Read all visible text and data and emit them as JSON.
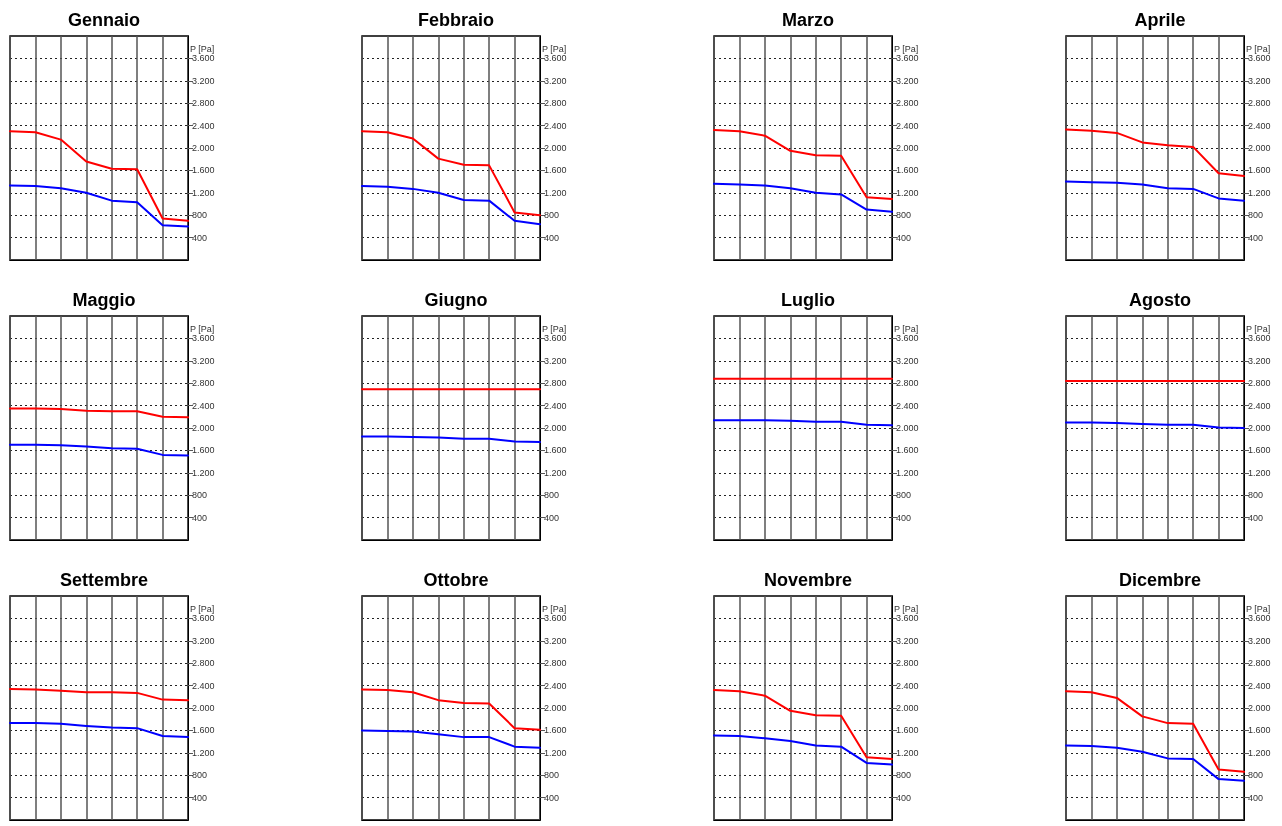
{
  "chart_data": [
    {
      "type": "line",
      "title": "Gennaio",
      "ylabel": "P [Pa]",
      "categories": [
        null,
        null,
        null,
        null,
        null,
        null,
        null,
        null
      ],
      "series": [
        {
          "color": "#ff0000",
          "values": [
            2300,
            2280,
            2150,
            1760,
            1630,
            1620,
            740,
            700
          ]
        },
        {
          "color": "#0000ff",
          "values": [
            1330,
            1320,
            1280,
            1200,
            1060,
            1030,
            620,
            600
          ]
        }
      ],
      "ylim": [
        0,
        4000
      ],
      "yticks": [
        {
          "value": 400,
          "label": "400"
        },
        {
          "value": 800,
          "label": "800"
        },
        {
          "value": 1200,
          "label": "1.200"
        },
        {
          "value": 1600,
          "label": "1.600"
        },
        {
          "value": 2000,
          "label": "2.000"
        },
        {
          "value": 2400,
          "label": "2.400"
        },
        {
          "value": 2800,
          "label": "2.800"
        },
        {
          "value": 3200,
          "label": "3.200"
        },
        {
          "value": 3600,
          "label": "3.600"
        }
      ],
      "grid": true,
      "tick_labels": "y",
      "marker": "none",
      "line_style": "solid"
    },
    {
      "type": "line",
      "title": "Febbraio",
      "ylabel": "P [Pa]",
      "categories": [
        null,
        null,
        null,
        null,
        null,
        null,
        null,
        null
      ],
      "series": [
        {
          "color": "#ff0000",
          "values": [
            2300,
            2280,
            2170,
            1810,
            1700,
            1690,
            850,
            800
          ]
        },
        {
          "color": "#0000ff",
          "values": [
            1320,
            1310,
            1270,
            1200,
            1070,
            1060,
            700,
            640
          ]
        }
      ],
      "ylim": [
        0,
        4000
      ],
      "yticks": [
        {
          "value": 400,
          "label": "400"
        },
        {
          "value": 800,
          "label": "800"
        },
        {
          "value": 1200,
          "label": "1.200"
        },
        {
          "value": 1600,
          "label": "1.600"
        },
        {
          "value": 2000,
          "label": "2.000"
        },
        {
          "value": 2400,
          "label": "2.400"
        },
        {
          "value": 2800,
          "label": "2.800"
        },
        {
          "value": 3200,
          "label": "3.200"
        },
        {
          "value": 3600,
          "label": "3.600"
        }
      ],
      "grid": true,
      "tick_labels": "y",
      "marker": "none",
      "line_style": "solid"
    },
    {
      "type": "line",
      "title": "Marzo",
      "ylabel": "P [Pa]",
      "categories": [
        null,
        null,
        null,
        null,
        null,
        null,
        null,
        null
      ],
      "series": [
        {
          "color": "#ff0000",
          "values": [
            2320,
            2300,
            2220,
            1950,
            1870,
            1860,
            1120,
            1090
          ]
        },
        {
          "color": "#0000ff",
          "values": [
            1360,
            1350,
            1330,
            1280,
            1200,
            1170,
            900,
            860
          ]
        }
      ],
      "ylim": [
        0,
        4000
      ],
      "yticks": [
        {
          "value": 400,
          "label": "400"
        },
        {
          "value": 800,
          "label": "800"
        },
        {
          "value": 1200,
          "label": "1.200"
        },
        {
          "value": 1600,
          "label": "1.600"
        },
        {
          "value": 2000,
          "label": "2.000"
        },
        {
          "value": 2400,
          "label": "2.400"
        },
        {
          "value": 2800,
          "label": "2.800"
        },
        {
          "value": 3200,
          "label": "3.200"
        },
        {
          "value": 3600,
          "label": "3.600"
        }
      ],
      "grid": true,
      "tick_labels": "y",
      "marker": "none",
      "line_style": "solid"
    },
    {
      "type": "line",
      "title": "Aprile",
      "ylabel": "P [Pa]",
      "categories": [
        null,
        null,
        null,
        null,
        null,
        null,
        null,
        null
      ],
      "series": [
        {
          "color": "#ff0000",
          "values": [
            2330,
            2310,
            2270,
            2100,
            2050,
            2020,
            1550,
            1500
          ]
        },
        {
          "color": "#0000ff",
          "values": [
            1400,
            1390,
            1380,
            1350,
            1280,
            1270,
            1100,
            1060
          ]
        }
      ],
      "ylim": [
        0,
        4000
      ],
      "yticks": [
        {
          "value": 400,
          "label": "400"
        },
        {
          "value": 800,
          "label": "800"
        },
        {
          "value": 1200,
          "label": "1.200"
        },
        {
          "value": 1600,
          "label": "1.600"
        },
        {
          "value": 2000,
          "label": "2.000"
        },
        {
          "value": 2400,
          "label": "2.400"
        },
        {
          "value": 2800,
          "label": "2.800"
        },
        {
          "value": 3200,
          "label": "3.200"
        },
        {
          "value": 3600,
          "label": "3.600"
        }
      ],
      "grid": true,
      "tick_labels": "y",
      "marker": "none",
      "line_style": "solid"
    },
    {
      "type": "line",
      "title": "Maggio",
      "ylabel": "P [Pa]",
      "categories": [
        null,
        null,
        null,
        null,
        null,
        null,
        null,
        null
      ],
      "series": [
        {
          "color": "#ff0000",
          "values": [
            2350,
            2350,
            2340,
            2310,
            2300,
            2300,
            2200,
            2190
          ]
        },
        {
          "color": "#0000ff",
          "values": [
            1700,
            1700,
            1690,
            1670,
            1640,
            1630,
            1520,
            1510
          ]
        }
      ],
      "ylim": [
        0,
        4000
      ],
      "yticks": [
        {
          "value": 400,
          "label": "400"
        },
        {
          "value": 800,
          "label": "800"
        },
        {
          "value": 1200,
          "label": "1.200"
        },
        {
          "value": 1600,
          "label": "1.600"
        },
        {
          "value": 2000,
          "label": "2.000"
        },
        {
          "value": 2400,
          "label": "2.400"
        },
        {
          "value": 2800,
          "label": "2.800"
        },
        {
          "value": 3200,
          "label": "3.200"
        },
        {
          "value": 3600,
          "label": "3.600"
        }
      ],
      "grid": true,
      "tick_labels": "y",
      "marker": "none",
      "line_style": "solid"
    },
    {
      "type": "line",
      "title": "Giugno",
      "ylabel": "P [Pa]",
      "categories": [
        null,
        null,
        null,
        null,
        null,
        null,
        null,
        null
      ],
      "series": [
        {
          "color": "#ff0000",
          "values": [
            2690,
            2690,
            2690,
            2690,
            2690,
            2690,
            2690,
            2690
          ]
        },
        {
          "color": "#0000ff",
          "values": [
            1850,
            1850,
            1840,
            1830,
            1810,
            1810,
            1760,
            1750
          ]
        }
      ],
      "ylim": [
        0,
        4000
      ],
      "yticks": [
        {
          "value": 400,
          "label": "400"
        },
        {
          "value": 800,
          "label": "800"
        },
        {
          "value": 1200,
          "label": "1.200"
        },
        {
          "value": 1600,
          "label": "1.600"
        },
        {
          "value": 2000,
          "label": "2.000"
        },
        {
          "value": 2400,
          "label": "2.400"
        },
        {
          "value": 2800,
          "label": "2.800"
        },
        {
          "value": 3200,
          "label": "3.200"
        },
        {
          "value": 3600,
          "label": "3.600"
        }
      ],
      "grid": true,
      "tick_labels": "y",
      "marker": "none",
      "line_style": "solid"
    },
    {
      "type": "line",
      "title": "Luglio",
      "ylabel": "P [Pa]",
      "categories": [
        null,
        null,
        null,
        null,
        null,
        null,
        null,
        null
      ],
      "series": [
        {
          "color": "#ff0000",
          "values": [
            2880,
            2880,
            2880,
            2880,
            2880,
            2880,
            2880,
            2880
          ]
        },
        {
          "color": "#0000ff",
          "values": [
            2140,
            2140,
            2140,
            2130,
            2110,
            2110,
            2060,
            2050
          ]
        }
      ],
      "ylim": [
        0,
        4000
      ],
      "yticks": [
        {
          "value": 400,
          "label": "400"
        },
        {
          "value": 800,
          "label": "800"
        },
        {
          "value": 1200,
          "label": "1.200"
        },
        {
          "value": 1600,
          "label": "1.600"
        },
        {
          "value": 2000,
          "label": "2.000"
        },
        {
          "value": 2400,
          "label": "2.400"
        },
        {
          "value": 2800,
          "label": "2.800"
        },
        {
          "value": 3200,
          "label": "3.200"
        },
        {
          "value": 3600,
          "label": "3.600"
        }
      ],
      "grid": true,
      "tick_labels": "y",
      "marker": "none",
      "line_style": "solid"
    },
    {
      "type": "line",
      "title": "Agosto",
      "ylabel": "P [Pa]",
      "categories": [
        null,
        null,
        null,
        null,
        null,
        null,
        null,
        null
      ],
      "series": [
        {
          "color": "#ff0000",
          "values": [
            2840,
            2840,
            2840,
            2840,
            2840,
            2840,
            2840,
            2840
          ]
        },
        {
          "color": "#0000ff",
          "values": [
            2100,
            2100,
            2090,
            2070,
            2060,
            2060,
            2010,
            2000
          ]
        }
      ],
      "ylim": [
        0,
        4000
      ],
      "yticks": [
        {
          "value": 400,
          "label": "400"
        },
        {
          "value": 800,
          "label": "800"
        },
        {
          "value": 1200,
          "label": "1.200"
        },
        {
          "value": 1600,
          "label": "1.600"
        },
        {
          "value": 2000,
          "label": "2.000"
        },
        {
          "value": 2400,
          "label": "2.400"
        },
        {
          "value": 2800,
          "label": "2.800"
        },
        {
          "value": 3200,
          "label": "3.200"
        },
        {
          "value": 3600,
          "label": "3.600"
        }
      ],
      "grid": true,
      "tick_labels": "y",
      "marker": "none",
      "line_style": "solid"
    },
    {
      "type": "line",
      "title": "Settembre",
      "ylabel": "P [Pa]",
      "categories": [
        null,
        null,
        null,
        null,
        null,
        null,
        null,
        null
      ],
      "series": [
        {
          "color": "#ff0000",
          "values": [
            2340,
            2330,
            2310,
            2280,
            2280,
            2270,
            2150,
            2140
          ]
        },
        {
          "color": "#0000ff",
          "values": [
            1730,
            1730,
            1720,
            1680,
            1650,
            1640,
            1500,
            1480
          ]
        }
      ],
      "ylim": [
        0,
        4000
      ],
      "yticks": [
        {
          "value": 400,
          "label": "400"
        },
        {
          "value": 800,
          "label": "800"
        },
        {
          "value": 1200,
          "label": "1.200"
        },
        {
          "value": 1600,
          "label": "1.600"
        },
        {
          "value": 2000,
          "label": "2.000"
        },
        {
          "value": 2400,
          "label": "2.400"
        },
        {
          "value": 2800,
          "label": "2.800"
        },
        {
          "value": 3200,
          "label": "3.200"
        },
        {
          "value": 3600,
          "label": "3.600"
        }
      ],
      "grid": true,
      "tick_labels": "y",
      "marker": "none",
      "line_style": "solid"
    },
    {
      "type": "line",
      "title": "Ottobre",
      "ylabel": "P [Pa]",
      "categories": [
        null,
        null,
        null,
        null,
        null,
        null,
        null,
        null
      ],
      "series": [
        {
          "color": "#ff0000",
          "values": [
            2330,
            2320,
            2280,
            2140,
            2090,
            2080,
            1640,
            1610
          ]
        },
        {
          "color": "#0000ff",
          "values": [
            1600,
            1590,
            1580,
            1530,
            1480,
            1480,
            1310,
            1290
          ]
        }
      ],
      "ylim": [
        0,
        4000
      ],
      "yticks": [
        {
          "value": 400,
          "label": "400"
        },
        {
          "value": 800,
          "label": "800"
        },
        {
          "value": 1200,
          "label": "1.200"
        },
        {
          "value": 1600,
          "label": "1.600"
        },
        {
          "value": 2000,
          "label": "2.000"
        },
        {
          "value": 2400,
          "label": "2.400"
        },
        {
          "value": 2800,
          "label": "2.800"
        },
        {
          "value": 3200,
          "label": "3.200"
        },
        {
          "value": 3600,
          "label": "3.600"
        }
      ],
      "grid": true,
      "tick_labels": "y",
      "marker": "none",
      "line_style": "solid"
    },
    {
      "type": "line",
      "title": "Novembre",
      "ylabel": "P [Pa]",
      "categories": [
        null,
        null,
        null,
        null,
        null,
        null,
        null,
        null
      ],
      "series": [
        {
          "color": "#ff0000",
          "values": [
            2320,
            2300,
            2220,
            1950,
            1870,
            1860,
            1120,
            1090
          ]
        },
        {
          "color": "#0000ff",
          "values": [
            1510,
            1500,
            1460,
            1410,
            1330,
            1310,
            1020,
            990
          ]
        }
      ],
      "ylim": [
        0,
        4000
      ],
      "yticks": [
        {
          "value": 400,
          "label": "400"
        },
        {
          "value": 800,
          "label": "800"
        },
        {
          "value": 1200,
          "label": "1.200"
        },
        {
          "value": 1600,
          "label": "1.600"
        },
        {
          "value": 2000,
          "label": "2.000"
        },
        {
          "value": 2400,
          "label": "2.400"
        },
        {
          "value": 2800,
          "label": "2.800"
        },
        {
          "value": 3200,
          "label": "3.200"
        },
        {
          "value": 3600,
          "label": "3.600"
        }
      ],
      "grid": true,
      "tick_labels": "y",
      "marker": "none",
      "line_style": "solid"
    },
    {
      "type": "line",
      "title": "Dicembre",
      "ylabel": "P [Pa]",
      "categories": [
        null,
        null,
        null,
        null,
        null,
        null,
        null,
        null
      ],
      "series": [
        {
          "color": "#ff0000",
          "values": [
            2300,
            2280,
            2180,
            1850,
            1730,
            1720,
            900,
            860
          ]
        },
        {
          "color": "#0000ff",
          "values": [
            1330,
            1320,
            1290,
            1220,
            1100,
            1090,
            730,
            700
          ]
        }
      ],
      "ylim": [
        0,
        4000
      ],
      "yticks": [
        {
          "value": 400,
          "label": "400"
        },
        {
          "value": 800,
          "label": "800"
        },
        {
          "value": 1200,
          "label": "1.200"
        },
        {
          "value": 1600,
          "label": "1.600"
        },
        {
          "value": 2000,
          "label": "2.000"
        },
        {
          "value": 2400,
          "label": "2.400"
        },
        {
          "value": 2800,
          "label": "2.800"
        },
        {
          "value": 3200,
          "label": "3.200"
        },
        {
          "value": 3600,
          "label": "3.600"
        }
      ],
      "grid": true,
      "tick_labels": "y",
      "marker": "none",
      "line_style": "solid"
    }
  ]
}
